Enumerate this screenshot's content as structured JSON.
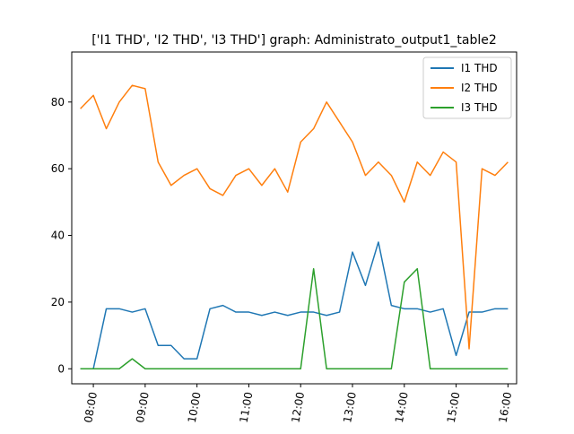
{
  "chart_data": {
    "type": "line",
    "title": "['I1 THD', 'I2 THD', 'I3 THD'] graph: Administrato_output1_table2",
    "xlabel": "",
    "ylabel": "",
    "x_ticks": [
      "08:00",
      "09:00",
      "10:00",
      "11:00",
      "12:00",
      "13:00",
      "14:00",
      "15:00",
      "16:00"
    ],
    "y_ticks": [
      "0",
      "20",
      "40",
      "60",
      "80"
    ],
    "xlim": [
      "07:35",
      "16:10"
    ],
    "ylim": [
      -4.5,
      95
    ],
    "grid": false,
    "legend_position": "top-right",
    "colors": {
      "I1 THD": "#1f77b4",
      "I2 THD": "#ff7f0e",
      "I3 THD": "#2ca02c"
    },
    "x": [
      "07:45",
      "08:00",
      "08:15",
      "08:30",
      "08:45",
      "09:00",
      "09:15",
      "09:30",
      "09:45",
      "10:00",
      "10:15",
      "10:30",
      "10:45",
      "11:00",
      "11:15",
      "11:30",
      "11:45",
      "12:00",
      "12:15",
      "12:30",
      "12:45",
      "13:00",
      "13:15",
      "13:30",
      "13:45",
      "14:00",
      "14:15",
      "14:30",
      "14:45",
      "15:00",
      "15:15",
      "15:30",
      "15:45",
      "16:00"
    ],
    "series": [
      {
        "name": "I1 THD",
        "values": [
          0,
          0,
          18,
          18,
          17,
          18,
          7,
          7,
          3,
          3,
          18,
          19,
          17,
          17,
          16,
          17,
          16,
          17,
          17,
          16,
          17,
          35,
          25,
          38,
          19,
          18,
          18,
          17,
          18,
          4,
          17,
          17,
          18,
          18
        ]
      },
      {
        "name": "I2 THD",
        "values": [
          78,
          82,
          72,
          80,
          85,
          84,
          62,
          55,
          58,
          60,
          54,
          52,
          58,
          60,
          55,
          60,
          53,
          68,
          72,
          80,
          74,
          68,
          58,
          62,
          58,
          50,
          62,
          58,
          65,
          62,
          6,
          60,
          58,
          62
        ]
      },
      {
        "name": "I3 THD",
        "values": [
          0,
          0,
          0,
          0,
          3,
          0,
          0,
          0,
          0,
          0,
          0,
          0,
          0,
          0,
          0,
          0,
          0,
          0,
          30,
          0,
          0,
          0,
          0,
          0,
          0,
          26,
          30,
          0,
          0,
          0,
          0,
          0,
          0,
          0
        ]
      }
    ]
  }
}
